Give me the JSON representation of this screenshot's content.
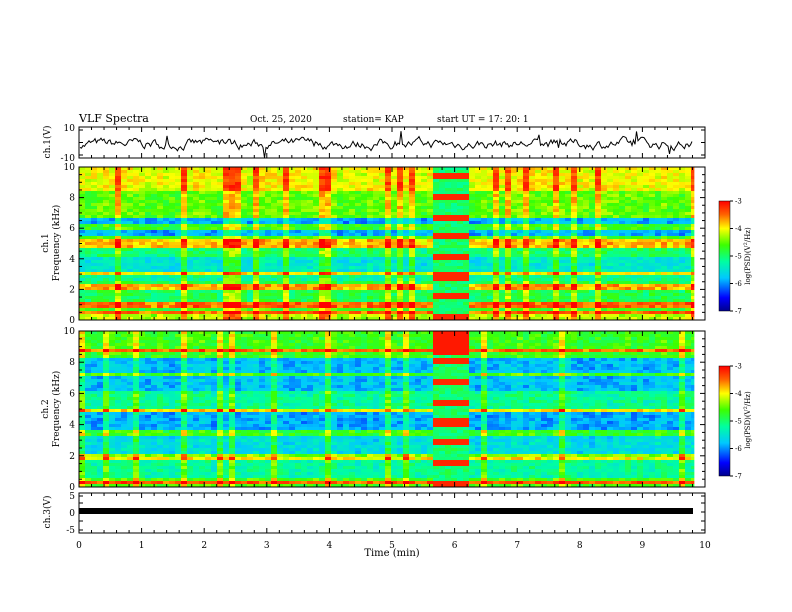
{
  "header": {
    "title": "VLF Spectra",
    "date": "Oct. 25, 2020",
    "station": "station= KAP",
    "start": "start  UT =   17: 20: 1"
  },
  "chart_data": [
    {
      "type": "line",
      "name": "ch1-waveform",
      "ylabel": "ch.1(V)",
      "ylim": [
        -10,
        10
      ],
      "yticks": [
        "10",
        "-10"
      ],
      "xlim": [
        0,
        10
      ]
    },
    {
      "type": "heatmap",
      "name": "ch1-spectrogram",
      "ylabel": "ch.1\nFrequency (kHz)",
      "ylim": [
        0,
        10
      ],
      "yticks": [
        "0",
        "2",
        "4",
        "6",
        "8",
        "10"
      ],
      "xlim": [
        0,
        10
      ],
      "colorbar": {
        "label": "log(PSD)(V²/Hz)",
        "ticks": [
          "-3",
          "-4",
          "-5",
          "-6",
          "-7"
        ],
        "range": [
          -7,
          -3
        ]
      }
    },
    {
      "type": "heatmap",
      "name": "ch2-spectrogram",
      "ylabel": "ch.2\nFrequency (kHz)",
      "ylim": [
        0,
        10
      ],
      "yticks": [
        "0",
        "2",
        "4",
        "6",
        "8",
        "10"
      ],
      "xlim": [
        0,
        10
      ],
      "colorbar": {
        "label": "log(PSD)(V²/Hz)",
        "ticks": [
          "-3",
          "-4",
          "-5",
          "-6",
          "-7"
        ],
        "range": [
          -7,
          -3
        ]
      }
    },
    {
      "type": "line",
      "name": "ch3-waveform",
      "ylabel": "ch.3(V)",
      "ylim": [
        -5,
        5
      ],
      "yticks": [
        "5",
        "0",
        "-5"
      ],
      "xlim": [
        0,
        10
      ],
      "xlabel": "Time  (min)",
      "xticks": [
        "0",
        "1",
        "2",
        "3",
        "4",
        "5",
        "6",
        "7",
        "8",
        "9",
        "10"
      ]
    }
  ]
}
